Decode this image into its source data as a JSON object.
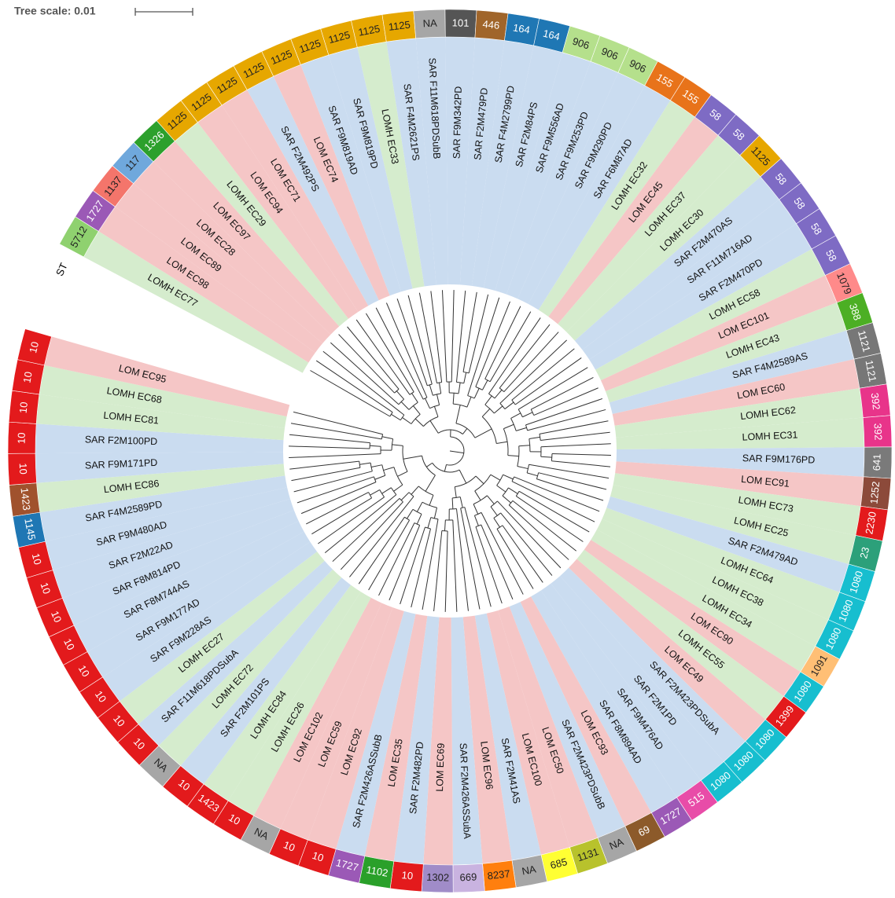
{
  "tree_scale_label": "Tree scale: 0.01",
  "st_header": "ST",
  "leaves": [
    {
      "label": "LOMH EC77",
      "st": "5712",
      "bg": "#d5eccd",
      "st_color": "#8fd16f"
    },
    {
      "label": "LOM EC98",
      "st": "1727",
      "bg": "#f5c6c6",
      "st_color": "#9b59b6"
    },
    {
      "label": "LOM EC89",
      "st": "1137",
      "bg": "#f5c6c6",
      "st_color": "#f4756b"
    },
    {
      "label": "LOM EC28",
      "st": "117",
      "bg": "#f5c6c6",
      "st_color": "#6fa8dc"
    },
    {
      "label": "LOM EC97",
      "st": "1326",
      "bg": "#f5c6c6",
      "st_color": "#2ca02c"
    },
    {
      "label": "LOMH EC29",
      "st": "1125",
      "bg": "#d5eccd",
      "st_color": "#e6a700"
    },
    {
      "label": "LOM EC94",
      "st": "1125",
      "bg": "#f5c6c6",
      "st_color": "#e6a700"
    },
    {
      "label": "LOM EC71",
      "st": "1125",
      "bg": "#f5c6c6",
      "st_color": "#e6a700"
    },
    {
      "label": "SAR F2M492PS",
      "st": "1125",
      "bg": "#cadcf0",
      "st_color": "#e6a700"
    },
    {
      "label": "LOM EC74",
      "st": "1125",
      "bg": "#f5c6c6",
      "st_color": "#e6a700"
    },
    {
      "label": "SAR F9M819AD",
      "st": "1125",
      "bg": "#cadcf0",
      "st_color": "#e6a700"
    },
    {
      "label": "SAR F9M819PD",
      "st": "1125",
      "bg": "#cadcf0",
      "st_color": "#e6a700"
    },
    {
      "label": "LOMH EC33",
      "st": "1125",
      "bg": "#d5eccd",
      "st_color": "#e6a700"
    },
    {
      "label": "SAR F4M2621PS",
      "st": "1125",
      "bg": "#cadcf0",
      "st_color": "#e6a700"
    },
    {
      "label": "SAR F11M618PDSubB",
      "st": "NA",
      "bg": "#cadcf0",
      "st_color": "#a6a6a6"
    },
    {
      "label": "SAR F9M342PD",
      "st": "101",
      "bg": "#cadcf0",
      "st_color": "#555555"
    },
    {
      "label": "SAR F2M479PD",
      "st": "446",
      "bg": "#cadcf0",
      "st_color": "#a0652a"
    },
    {
      "label": "SAR F4M2799PD",
      "st": "164",
      "bg": "#cadcf0",
      "st_color": "#1f77b4"
    },
    {
      "label": "SAR F2M84PS",
      "st": "164",
      "bg": "#cadcf0",
      "st_color": "#1f77b4"
    },
    {
      "label": "SAR F9M556AD",
      "st": "906",
      "bg": "#cadcf0",
      "st_color": "#b5e08c"
    },
    {
      "label": "SAR F9M253PD",
      "st": "906",
      "bg": "#cadcf0",
      "st_color": "#b5e08c"
    },
    {
      "label": "SAR F9M290PD",
      "st": "906",
      "bg": "#cadcf0",
      "st_color": "#b5e08c"
    },
    {
      "label": "SAR F6M87AD",
      "st": "155",
      "bg": "#cadcf0",
      "st_color": "#e8731a"
    },
    {
      "label": "LOMH EC32",
      "st": "155",
      "bg": "#d5eccd",
      "st_color": "#e8731a"
    },
    {
      "label": "LOM EC45",
      "st": "58",
      "bg": "#f5c6c6",
      "st_color": "#7e6bc4"
    },
    {
      "label": "LOMH EC37",
      "st": "58",
      "bg": "#d5eccd",
      "st_color": "#7e6bc4"
    },
    {
      "label": "LOMH EC30",
      "st": "1125",
      "bg": "#d5eccd",
      "st_color": "#e6a700"
    },
    {
      "label": "SAR F2M470AS",
      "st": "58",
      "bg": "#cadcf0",
      "st_color": "#7e6bc4"
    },
    {
      "label": "SAR F11M716AD",
      "st": "58",
      "bg": "#cadcf0",
      "st_color": "#7e6bc4"
    },
    {
      "label": "SAR F2M470PD",
      "st": "58",
      "bg": "#cadcf0",
      "st_color": "#7e6bc4"
    },
    {
      "label": "LOMH EC58",
      "st": "58",
      "bg": "#d5eccd",
      "st_color": "#7e6bc4"
    },
    {
      "label": "LOM EC101",
      "st": "1079",
      "bg": "#f5c6c6",
      "st_color": "#ff8a8a"
    },
    {
      "label": "LOMH EC43",
      "st": "388",
      "bg": "#d5eccd",
      "st_color": "#4caf24"
    },
    {
      "label": "SAR F4M2589AS",
      "st": "1121",
      "bg": "#cadcf0",
      "st_color": "#777777"
    },
    {
      "label": "LOM EC60",
      "st": "1121",
      "bg": "#f5c6c6",
      "st_color": "#777777"
    },
    {
      "label": "LOMH EC62",
      "st": "392",
      "bg": "#d5eccd",
      "st_color": "#e8348a"
    },
    {
      "label": "LOMH EC31",
      "st": "392",
      "bg": "#d5eccd",
      "st_color": "#e8348a"
    },
    {
      "label": "SAR F9M176PD",
      "st": "641",
      "bg": "#cadcf0",
      "st_color": "#7a7a7a"
    },
    {
      "label": "LOM EC91",
      "st": "1252",
      "bg": "#f5c6c6",
      "st_color": "#8c4a3a"
    },
    {
      "label": "LOMH EC73",
      "st": "2230",
      "bg": "#d5eccd",
      "st_color": "#e31a1c"
    },
    {
      "label": "LOMH EC25",
      "st": "23",
      "bg": "#d5eccd",
      "st_color": "#2ca07a"
    },
    {
      "label": "SAR F2M479AD",
      "st": "1080",
      "bg": "#cadcf0",
      "st_color": "#17becf"
    },
    {
      "label": "LOMH EC64",
      "st": "1080",
      "bg": "#d5eccd",
      "st_color": "#17becf"
    },
    {
      "label": "LOMH EC38",
      "st": "1080",
      "bg": "#d5eccd",
      "st_color": "#17becf"
    },
    {
      "label": "LOMH EC34",
      "st": "1091",
      "bg": "#d5eccd",
      "st_color": "#ffbf75"
    },
    {
      "label": "LOM EC90",
      "st": "1080",
      "bg": "#f5c6c6",
      "st_color": "#17becf"
    },
    {
      "label": "LOMH EC55",
      "st": "1399",
      "bg": "#d5eccd",
      "st_color": "#e31a1c"
    },
    {
      "label": "LOM EC49",
      "st": "1080",
      "bg": "#f5c6c6",
      "st_color": "#17becf"
    },
    {
      "label": "SAR F2M423PDSubA",
      "st": "1080",
      "bg": "#cadcf0",
      "st_color": "#17becf"
    },
    {
      "label": "SAR F2M1PD",
      "st": "1080",
      "bg": "#cadcf0",
      "st_color": "#17becf"
    },
    {
      "label": "SAR F9M476AD",
      "st": "515",
      "bg": "#cadcf0",
      "st_color": "#e84ca8"
    },
    {
      "label": "SAR F8M894AD",
      "st": "1727",
      "bg": "#cadcf0",
      "st_color": "#9b59b6"
    },
    {
      "label": "LOM EC93",
      "st": "69",
      "bg": "#f5c6c6",
      "st_color": "#8c5a2a"
    },
    {
      "label": "SAR F2M423PDSubB",
      "st": "NA",
      "bg": "#cadcf0",
      "st_color": "#a6a6a6"
    },
    {
      "label": "LOM EC50",
      "st": "1131",
      "bg": "#f5c6c6",
      "st_color": "#b8c22c"
    },
    {
      "label": "LOM EC100",
      "st": "685",
      "bg": "#f5c6c6",
      "st_color": "#ffff33"
    },
    {
      "label": "SAR F2M41AS",
      "st": "NA",
      "bg": "#cadcf0",
      "st_color": "#a6a6a6"
    },
    {
      "label": "LOM EC96",
      "st": "8237",
      "bg": "#f5c6c6",
      "st_color": "#ff7f0e"
    },
    {
      "label": "SAR F2M426ASSubA",
      "st": "669",
      "bg": "#cadcf0",
      "st_color": "#c9b3e0"
    },
    {
      "label": "LOM EC69",
      "st": "1302",
      "bg": "#f5c6c6",
      "st_color": "#a08cc8"
    },
    {
      "label": "SAR F2M482PD",
      "st": "10",
      "bg": "#cadcf0",
      "st_color": "#e31a1c"
    },
    {
      "label": "LOM EC35",
      "st": "1102",
      "bg": "#f5c6c6",
      "st_color": "#2aa02a"
    },
    {
      "label": "SAR F2M426ASSubB",
      "st": "1727",
      "bg": "#cadcf0",
      "st_color": "#9b59b6"
    },
    {
      "label": "LOM EC92",
      "st": "10",
      "bg": "#f5c6c6",
      "st_color": "#e31a1c"
    },
    {
      "label": "LOM EC59",
      "st": "10",
      "bg": "#f5c6c6",
      "st_color": "#e31a1c"
    },
    {
      "label": "LOM EC102",
      "st": "NA",
      "bg": "#f5c6c6",
      "st_color": "#a6a6a6"
    },
    {
      "label": "LOMH EC26",
      "st": "10",
      "bg": "#d5eccd",
      "st_color": "#e31a1c"
    },
    {
      "label": "LOMH EC84",
      "st": "1423",
      "bg": "#d5eccd",
      "st_color": "#e31a1c"
    },
    {
      "label": "SAR F2M101PS",
      "st": "10",
      "bg": "#cadcf0",
      "st_color": "#e31a1c"
    },
    {
      "label": "LOMH EC72",
      "st": "NA",
      "bg": "#d5eccd",
      "st_color": "#a6a6a6"
    },
    {
      "label": "SAR F11M618PDSubA",
      "st": "10",
      "bg": "#cadcf0",
      "st_color": "#e31a1c"
    },
    {
      "label": "LOMH EC27",
      "st": "10",
      "bg": "#d5eccd",
      "st_color": "#e31a1c"
    },
    {
      "label": "SAR F9M228AS",
      "st": "10",
      "bg": "#cadcf0",
      "st_color": "#e31a1c"
    },
    {
      "label": "SAR F9M177AD",
      "st": "10",
      "bg": "#cadcf0",
      "st_color": "#e31a1c"
    },
    {
      "label": "SAR F8M744AS",
      "st": "10",
      "bg": "#cadcf0",
      "st_color": "#e31a1c"
    },
    {
      "label": "SAR F8M814PD",
      "st": "10",
      "bg": "#cadcf0",
      "st_color": "#e31a1c"
    },
    {
      "label": "SAR F2M22AD",
      "st": "10",
      "bg": "#cadcf0",
      "st_color": "#e31a1c"
    },
    {
      "label": "SAR F9M480AD",
      "st": "10",
      "bg": "#cadcf0",
      "st_color": "#e31a1c"
    },
    {
      "label": "SAR F4M2589PD",
      "st": "1145",
      "bg": "#cadcf0",
      "st_color": "#1f77b4"
    },
    {
      "label": "LOMH EC86",
      "st": "1423",
      "bg": "#d5eccd",
      "st_color": "#a0522d"
    },
    {
      "label": "SAR F9M171PD",
      "st": "10",
      "bg": "#cadcf0",
      "st_color": "#e31a1c"
    },
    {
      "label": "SAR F2M100PD",
      "st": "10",
      "bg": "#cadcf0",
      "st_color": "#e31a1c"
    },
    {
      "label": "LOMH EC81",
      "st": "10",
      "bg": "#d5eccd",
      "st_color": "#e31a1c"
    },
    {
      "label": "LOMH EC68",
      "st": "10",
      "bg": "#d5eccd",
      "st_color": "#e31a1c"
    },
    {
      "label": "LOM EC95",
      "st": "10",
      "bg": "#f5c6c6",
      "st_color": "#e31a1c"
    }
  ]
}
